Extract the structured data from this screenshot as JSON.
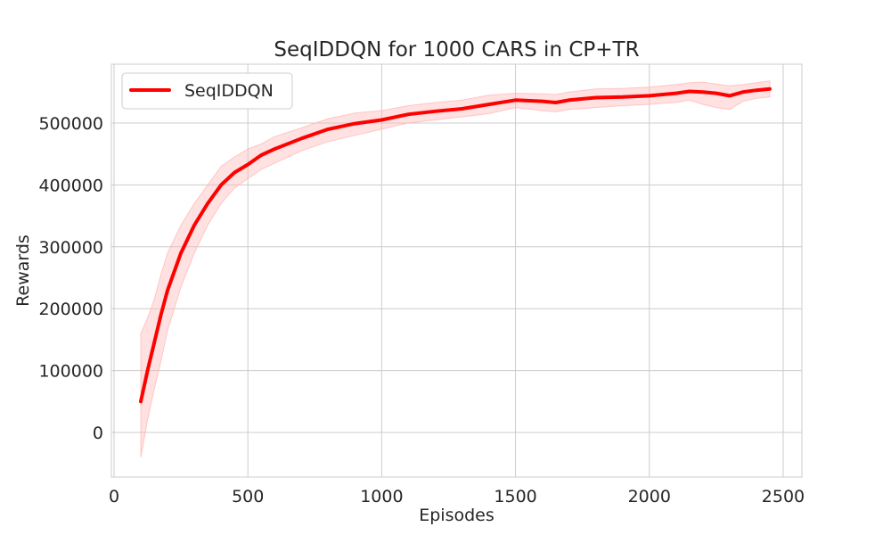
{
  "chart_data": {
    "type": "line",
    "title": "SeqIDDQN for 1000 CARS in CP+TR",
    "xlabel": "Episodes",
    "ylabel": "Rewards",
    "xlim": [
      -10,
      2570
    ],
    "ylim": [
      -72000,
      595000
    ],
    "xticks": [
      0,
      500,
      1000,
      1500,
      2000,
      2500
    ],
    "yticks": [
      0,
      100000,
      200000,
      300000,
      400000,
      500000
    ],
    "xtick_labels": [
      "0",
      "500",
      "1000",
      "1500",
      "2000",
      "2500"
    ],
    "ytick_labels": [
      "0",
      "100000",
      "200000",
      "300000",
      "400000",
      "500000"
    ],
    "grid": true,
    "legend_position": "upper-left",
    "series": [
      {
        "name": "SeqIDDQN",
        "color": "#ff0000",
        "band_color": "#ffb3b3",
        "x": [
          100,
          125,
          150,
          175,
          200,
          250,
          300,
          350,
          400,
          450,
          500,
          550,
          600,
          700,
          800,
          900,
          1000,
          1100,
          1200,
          1300,
          1400,
          1500,
          1600,
          1650,
          1700,
          1800,
          1900,
          2000,
          2050,
          2100,
          2150,
          2200,
          2250,
          2300,
          2350,
          2400,
          2450
        ],
        "y": [
          50000,
          100000,
          145000,
          190000,
          230000,
          290000,
          335000,
          370000,
          400000,
          420000,
          433000,
          448000,
          458000,
          475000,
          490000,
          499000,
          505000,
          514000,
          519000,
          523000,
          530000,
          537000,
          535000,
          533000,
          537000,
          541000,
          542000,
          544000,
          546000,
          548000,
          551000,
          550000,
          548000,
          544000,
          550000,
          553000,
          555000
        ],
        "lower": [
          -40000,
          20000,
          70000,
          115000,
          165000,
          235000,
          290000,
          335000,
          370000,
          395000,
          410000,
          425000,
          435000,
          455000,
          470000,
          480000,
          490000,
          500000,
          505000,
          510000,
          515000,
          525000,
          520000,
          518000,
          522000,
          525000,
          528000,
          530000,
          532000,
          533000,
          537000,
          530000,
          525000,
          522000,
          535000,
          540000,
          542000
        ],
        "upper": [
          160000,
          185000,
          215000,
          255000,
          290000,
          335000,
          370000,
          400000,
          430000,
          445000,
          458000,
          466000,
          478000,
          492000,
          507000,
          516000,
          520000,
          528000,
          533000,
          537000,
          545000,
          548000,
          547000,
          546000,
          550000,
          555000,
          556000,
          558000,
          560000,
          562000,
          565000,
          566000,
          563000,
          560000,
          562000,
          565000,
          568000
        ]
      }
    ]
  }
}
